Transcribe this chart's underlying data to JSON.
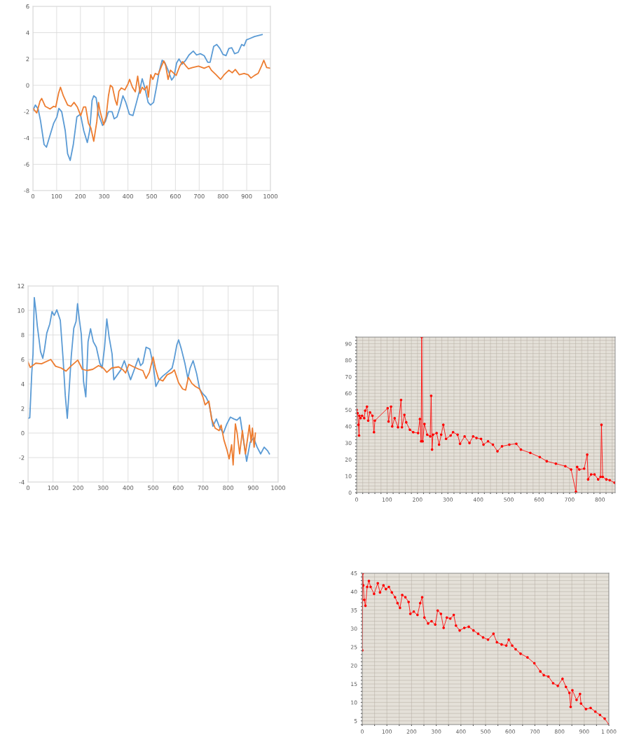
{
  "chart_data": [
    {
      "type": "line",
      "xlim": [
        0,
        1000
      ],
      "ylim": [
        -8,
        6
      ],
      "xticks": [
        0,
        100,
        200,
        300,
        400,
        500,
        600,
        700,
        800,
        900,
        1000
      ],
      "yticks": [
        -8,
        -6,
        -4,
        -2,
        0,
        2,
        4,
        6
      ],
      "grid": true,
      "marker": "none",
      "line_style": "solid",
      "series": [
        {
          "color": "#5b9bd5",
          "x": [
            0,
            10,
            22,
            32,
            47,
            57,
            72,
            87,
            101,
            109,
            121,
            136,
            146,
            157,
            170,
            185,
            200,
            214,
            229,
            239,
            249,
            256,
            266,
            276,
            293,
            305,
            318,
            333,
            342,
            354,
            367,
            379,
            391,
            406,
            421,
            436,
            451,
            460,
            472,
            485,
            495,
            508,
            520,
            531,
            544,
            556,
            569,
            584,
            594,
            605,
            615,
            628,
            643,
            657,
            675,
            689,
            705,
            721,
            736,
            746,
            761,
            774,
            787,
            800,
            813,
            825,
            837,
            849,
            864,
            879,
            889,
            899,
            913,
            933,
            965
          ],
          "values": [
            -1.94,
            -1.5,
            -1.8,
            -2.7,
            -4.5,
            -4.7,
            -3.8,
            -2.9,
            -2.4,
            -1.75,
            -2.0,
            -3.45,
            -5.2,
            -5.7,
            -4.5,
            -2.4,
            -2.2,
            -3.45,
            -4.35,
            -3.45,
            -1.15,
            -0.8,
            -0.95,
            -2.2,
            -3.05,
            -2.75,
            -2.0,
            -2.0,
            -2.55,
            -2.4,
            -1.65,
            -0.8,
            -1.3,
            -2.2,
            -2.3,
            -1.3,
            -0.25,
            0.5,
            -0.25,
            -1.3,
            -1.5,
            -1.3,
            -0.15,
            1.0,
            1.9,
            1.7,
            1.15,
            0.4,
            0.65,
            1.7,
            2.0,
            1.6,
            1.9,
            2.3,
            2.6,
            2.3,
            2.4,
            2.25,
            1.75,
            1.75,
            2.95,
            3.1,
            2.8,
            2.35,
            2.25,
            2.8,
            2.85,
            2.4,
            2.5,
            3.1,
            3.0,
            3.45,
            3.55,
            3.7,
            3.85
          ]
        },
        {
          "color": "#ed7d31",
          "x": [
            0,
            16,
            30,
            37,
            52,
            72,
            87,
            96,
            108,
            116,
            128,
            146,
            160,
            173,
            187,
            201,
            213,
            222,
            234,
            244,
            256,
            269,
            276,
            283,
            298,
            308,
            318,
            326,
            335,
            347,
            354,
            362,
            372,
            387,
            400,
            407,
            419,
            431,
            441,
            451,
            460,
            470,
            480,
            486,
            496,
            505,
            515,
            527,
            539,
            551,
            559,
            569,
            579,
            594,
            603,
            618,
            630,
            643,
            655,
            672,
            697,
            721,
            741,
            751,
            771,
            790,
            805,
            825,
            839,
            852,
            869,
            889,
            906,
            918,
            933,
            948,
            963,
            972,
            984,
            1000
          ],
          "values": [
            -1.75,
            -2.1,
            -1.2,
            -1.0,
            -1.6,
            -1.8,
            -1.6,
            -1.65,
            -0.6,
            -0.15,
            -0.8,
            -1.5,
            -1.6,
            -1.3,
            -1.65,
            -2.3,
            -1.65,
            -1.65,
            -2.9,
            -3.25,
            -4.25,
            -2.75,
            -1.3,
            -2.0,
            -3.0,
            -2.4,
            -0.8,
            0.0,
            -0.15,
            -1.15,
            -1.5,
            -0.45,
            -0.2,
            -0.35,
            0.1,
            0.45,
            -0.15,
            -0.5,
            0.7,
            -0.6,
            -0.15,
            -0.35,
            -0.05,
            -0.9,
            0.8,
            0.45,
            0.9,
            0.8,
            1.35,
            1.85,
            1.5,
            0.45,
            1.15,
            0.9,
            0.75,
            1.45,
            1.8,
            1.5,
            1.25,
            1.35,
            1.45,
            1.3,
            1.45,
            1.15,
            0.8,
            0.45,
            0.8,
            1.15,
            0.95,
            1.2,
            0.8,
            0.9,
            0.8,
            0.55,
            0.75,
            0.9,
            1.5,
            1.9,
            1.35,
            1.3
          ]
        }
      ]
    },
    {
      "type": "line",
      "xlim": [
        0,
        1000
      ],
      "ylim": [
        -4,
        12
      ],
      "xticks": [
        0,
        100,
        200,
        300,
        400,
        500,
        600,
        700,
        800,
        900,
        1000
      ],
      "yticks": [
        -4,
        -2,
        0,
        2,
        4,
        6,
        8,
        10,
        12
      ],
      "grid": true,
      "marker": "none",
      "line_style": "solid",
      "series": [
        {
          "color": "#5b9bd5",
          "x": [
            0,
            7,
            15,
            20,
            25,
            31,
            37,
            43,
            50,
            59,
            66,
            75,
            87,
            96,
            105,
            115,
            129,
            140,
            149,
            157,
            164,
            173,
            183,
            192,
            198,
            205,
            213,
            222,
            231,
            240,
            250,
            261,
            273,
            287,
            296,
            306,
            315,
            324,
            336,
            343,
            357,
            371,
            385,
            397,
            410,
            427,
            441,
            450,
            459,
            472,
            487,
            501,
            511,
            525,
            539,
            557,
            576,
            585,
            595,
            602,
            613,
            627,
            639,
            648,
            660,
            674,
            686,
            697,
            711,
            723,
            732,
            739,
            753,
            767,
            781,
            795,
            809,
            823,
            835,
            848,
            860,
            874,
            888,
            902,
            916,
            930,
            944,
            958,
            965
          ],
          "values": [
            1.2,
            1.25,
            4.9,
            6.45,
            11.05,
            10.05,
            8.75,
            7.8,
            6.65,
            6.1,
            6.85,
            8.15,
            8.9,
            9.9,
            9.6,
            10.05,
            9.2,
            6.1,
            3.05,
            1.2,
            3.4,
            6.3,
            8.55,
            9.1,
            10.55,
            9.3,
            8.05,
            4.2,
            2.95,
            7.45,
            8.5,
            7.45,
            7.0,
            5.7,
            5.3,
            7.0,
            9.3,
            7.85,
            6.45,
            4.35,
            4.75,
            5.15,
            5.9,
            5.15,
            4.35,
            5.3,
            6.1,
            5.5,
            5.7,
            7.0,
            6.85,
            5.5,
            3.8,
            4.35,
            4.65,
            4.95,
            5.3,
            6.1,
            7.2,
            7.6,
            6.85,
            5.7,
            4.45,
            5.3,
            5.9,
            4.85,
            3.6,
            3.25,
            2.95,
            2.45,
            1.5,
            0.55,
            1.15,
            0.4,
            0.0,
            0.75,
            1.3,
            1.15,
            1.05,
            1.3,
            -0.4,
            -2.3,
            -0.75,
            -0.4,
            -1.15,
            -1.7,
            -1.15,
            -1.45,
            -1.7
          ]
        },
        {
          "color": "#ed7d31",
          "x": [
            0,
            9,
            31,
            54,
            91,
            110,
            133,
            152,
            171,
            199,
            217,
            236,
            259,
            282,
            301,
            315,
            334,
            362,
            380,
            390,
            403,
            422,
            444,
            459,
            472,
            485,
            500,
            509,
            522,
            539,
            556,
            576,
            585,
            602,
            618,
            630,
            641,
            655,
            669,
            686,
            699,
            708,
            723,
            734,
            748,
            764,
            772,
            783,
            795,
            804,
            814,
            820,
            829,
            836,
            846,
            857,
            869,
            878,
            885,
            892,
            897,
            904,
            909
          ],
          "values": [
            5.8,
            5.35,
            5.7,
            5.65,
            6.0,
            5.45,
            5.3,
            5.05,
            5.45,
            5.95,
            5.2,
            5.1,
            5.2,
            5.5,
            5.3,
            4.95,
            5.3,
            5.4,
            5.15,
            4.9,
            5.6,
            5.4,
            5.2,
            5.1,
            4.45,
            4.95,
            6.2,
            5.3,
            4.4,
            4.25,
            4.75,
            4.95,
            5.15,
            4.1,
            3.6,
            3.5,
            4.55,
            4.05,
            3.8,
            3.6,
            2.95,
            2.3,
            2.6,
            1.15,
            0.4,
            0.2,
            0.65,
            -0.55,
            -1.35,
            -2.1,
            -0.95,
            -2.6,
            0.75,
            0.0,
            -1.7,
            0.2,
            -1.7,
            -0.4,
            0.65,
            -0.75,
            0.4,
            -1.15,
            0.0
          ]
        }
      ]
    },
    {
      "type": "line",
      "xlim": [
        0,
        850
      ],
      "ylim": [
        0,
        94
      ],
      "xticks": [
        0,
        {
          "value": 20,
          "label": null
        },
        {
          "value": 40,
          "label": null
        },
        {
          "value": 60,
          "label": null
        },
        {
          "value": 80,
          "label": null
        },
        100,
        {
          "value": 120,
          "label": null
        },
        {
          "value": 140,
          "label": null
        },
        {
          "value": 160,
          "label": null
        },
        {
          "value": 180,
          "label": null
        },
        200,
        {
          "value": 220,
          "label": null
        },
        {
          "value": 240,
          "label": null
        },
        {
          "value": 260,
          "label": null
        },
        {
          "value": 280,
          "label": null
        },
        300,
        {
          "value": 320,
          "label": null
        },
        {
          "value": 340,
          "label": null
        },
        {
          "value": 360,
          "label": null
        },
        {
          "value": 380,
          "label": null
        },
        400,
        {
          "value": 420,
          "label": null
        },
        {
          "value": 440,
          "label": null
        },
        {
          "value": 460,
          "label": null
        },
        {
          "value": 480,
          "label": null
        },
        500,
        {
          "value": 520,
          "label": null
        },
        {
          "value": 540,
          "label": null
        },
        {
          "value": 560,
          "label": null
        },
        {
          "value": 580,
          "label": null
        },
        600,
        {
          "value": 620,
          "label": null
        },
        {
          "value": 640,
          "label": null
        },
        {
          "value": 660,
          "label": null
        },
        {
          "value": 680,
          "label": null
        },
        700,
        {
          "value": 720,
          "label": null
        },
        {
          "value": 740,
          "label": null
        },
        {
          "value": 760,
          "label": null
        },
        {
          "value": 780,
          "label": null
        },
        800,
        {
          "value": 820,
          "label": null
        },
        {
          "value": 840,
          "label": null
        }
      ],
      "yticks": [
        0,
        {
          "value": 2,
          "label": null
        },
        {
          "value": 4,
          "label": null
        },
        {
          "value": 6,
          "label": null
        },
        {
          "value": 8,
          "label": null
        },
        10,
        {
          "value": 12,
          "label": null
        },
        {
          "value": 14,
          "label": null
        },
        {
          "value": 16,
          "label": null
        },
        {
          "value": 18,
          "label": null
        },
        20,
        {
          "value": 22,
          "label": null
        },
        {
          "value": 24,
          "label": null
        },
        {
          "value": 26,
          "label": null
        },
        {
          "value": 28,
          "label": null
        },
        30,
        {
          "value": 32,
          "label": null
        },
        {
          "value": 34,
          "label": null
        },
        {
          "value": 36,
          "label": null
        },
        {
          "value": 38,
          "label": null
        },
        40,
        {
          "value": 42,
          "label": null
        },
        {
          "value": 44,
          "label": null
        },
        {
          "value": 46,
          "label": null
        },
        {
          "value": 48,
          "label": null
        },
        50,
        {
          "value": 52,
          "label": null
        },
        {
          "value": 54,
          "label": null
        },
        {
          "value": 56,
          "label": null
        },
        {
          "value": 58,
          "label": null
        },
        60,
        {
          "value": 62,
          "label": null
        },
        {
          "value": 64,
          "label": null
        },
        {
          "value": 66,
          "label": null
        },
        {
          "value": 68,
          "label": null
        },
        70,
        {
          "value": 72,
          "label": null
        },
        {
          "value": 74,
          "label": null
        },
        {
          "value": 76,
          "label": null
        },
        {
          "value": 78,
          "label": null
        },
        80,
        {
          "value": 82,
          "label": null
        },
        {
          "value": 84,
          "label": null
        },
        {
          "value": 86,
          "label": null
        },
        {
          "value": 88,
          "label": null
        },
        90,
        {
          "value": 92,
          "label": null
        },
        {
          "value": 94,
          "label": null
        }
      ],
      "grid": true,
      "marker": "circle",
      "line_style": "solid",
      "series": [
        {
          "color": "#ff0000",
          "x": [
            0,
            3,
            6,
            8,
            9,
            13,
            18,
            25,
            28,
            34,
            38,
            44,
            52,
            57,
            60,
            102,
            105,
            113,
            117,
            125,
            136,
            146,
            149,
            157,
            163,
            175,
            186,
            202,
            208,
            212,
            214,
            217,
            223,
            232,
            242,
            245,
            248,
            251,
            263,
            271,
            278,
            285,
            294,
            309,
            317,
            332,
            340,
            355,
            371,
            383,
            394,
            409,
            417,
            432,
            448,
            463,
            478,
            502,
            525,
            540,
            571,
            602,
            625,
            655,
            686,
            705,
            721,
            725,
            732,
            748,
            758,
            761,
            771,
            782,
            794,
            802,
            805,
            809,
            821,
            832,
            848
          ],
          "values": [
            50,
            48,
            41,
            34.5,
            46.5,
            45,
            46.5,
            45,
            49.5,
            52,
            43.5,
            48.5,
            46.5,
            36.5,
            43.5,
            51,
            43,
            52,
            40,
            45,
            39.5,
            56,
            39.5,
            47,
            42.5,
            38,
            36.5,
            36,
            44.5,
            31,
            94,
            31,
            41.5,
            35,
            34,
            58.5,
            26,
            35,
            36,
            29,
            35,
            41,
            32.5,
            34.5,
            36.5,
            35,
            29.5,
            34,
            30,
            34,
            33,
            32.5,
            29,
            31,
            29,
            25,
            28,
            29,
            29.5,
            26,
            24,
            21.5,
            19,
            17.5,
            16,
            14,
            0.5,
            15.5,
            14,
            14.5,
            23,
            8,
            11,
            11,
            8,
            9.5,
            41,
            9.5,
            8,
            7.5,
            6
          ]
        }
      ]
    },
    {
      "type": "line",
      "xlim": [
        0,
        1000
      ],
      "ylim": [
        4,
        45
      ],
      "xticks": [
        0,
        {
          "value": 50,
          "label": null
        },
        100,
        {
          "value": 150,
          "label": null
        },
        200,
        {
          "value": 250,
          "label": null
        },
        300,
        {
          "value": 350,
          "label": null
        },
        400,
        {
          "value": 450,
          "label": null
        },
        500,
        {
          "value": 550,
          "label": null
        },
        600,
        {
          "value": 650,
          "label": null
        },
        700,
        {
          "value": 750,
          "label": null
        },
        800,
        {
          "value": 850,
          "label": null
        },
        900,
        {
          "value": 950,
          "label": null
        },
        {
          "value": 1000,
          "label": "1 000"
        }
      ],
      "yticks": [
        {
          "value": 4,
          "label": null
        },
        5,
        {
          "value": 6,
          "label": null
        },
        {
          "value": 7,
          "label": null
        },
        {
          "value": 8,
          "label": null
        },
        {
          "value": 9,
          "label": null
        },
        10,
        {
          "value": 11,
          "label": null
        },
        {
          "value": 12,
          "label": null
        },
        {
          "value": 13,
          "label": null
        },
        {
          "value": 14,
          "label": null
        },
        15,
        {
          "value": 16,
          "label": null
        },
        {
          "value": 17,
          "label": null
        },
        {
          "value": 18,
          "label": null
        },
        {
          "value": 19,
          "label": null
        },
        20,
        {
          "value": 21,
          "label": null
        },
        {
          "value": 22,
          "label": null
        },
        {
          "value": 23,
          "label": null
        },
        {
          "value": 24,
          "label": null
        },
        25,
        {
          "value": 26,
          "label": null
        },
        {
          "value": 27,
          "label": null
        },
        {
          "value": 28,
          "label": null
        },
        {
          "value": 29,
          "label": null
        },
        30,
        {
          "value": 31,
          "label": null
        },
        {
          "value": 32,
          "label": null
        },
        {
          "value": 33,
          "label": null
        },
        {
          "value": 34,
          "label": null
        },
        35,
        {
          "value": 36,
          "label": null
        },
        {
          "value": 37,
          "label": null
        },
        {
          "value": 38,
          "label": null
        },
        {
          "value": 39,
          "label": null
        },
        40,
        {
          "value": 41,
          "label": null
        },
        {
          "value": 42,
          "label": null
        },
        {
          "value": 43,
          "label": null
        },
        {
          "value": 44,
          "label": null
        },
        45
      ],
      "grid": true,
      "marker": "circle",
      "line_style": "solid",
      "series": [
        {
          "color": "#ff0000",
          "x": [
            0,
            2,
            4,
            8,
            13,
            20,
            27,
            34,
            48,
            63,
            72,
            86,
            96,
            108,
            120,
            133,
            143,
            153,
            162,
            175,
            188,
            195,
            209,
            224,
            235,
            243,
            252,
            267,
            281,
            296,
            306,
            319,
            330,
            343,
            357,
            371,
            380,
            395,
            414,
            432,
            451,
            470,
            490,
            510,
            532,
            546,
            565,
            584,
            594,
            608,
            622,
            642,
            670,
            698,
            722,
            736,
            755,
            774,
            793,
            812,
            826,
            840,
            845,
            852,
            869,
            883,
            887,
            907,
            926,
            945,
            964,
            983,
            1000
          ],
          "values": [
            24.1,
            45,
            41.7,
            37.8,
            36.2,
            41.3,
            42.9,
            41.3,
            39.4,
            42.3,
            39.8,
            41.7,
            40.7,
            41.3,
            39.8,
            38.5,
            36.9,
            35.6,
            39.1,
            38.5,
            37.2,
            34.0,
            34.6,
            33.7,
            36.9,
            38.5,
            33.0,
            31.4,
            32.0,
            31.1,
            34.9,
            34.0,
            30.2,
            33.0,
            32.7,
            33.7,
            30.8,
            29.5,
            30.2,
            30.5,
            29.5,
            28.6,
            27.6,
            27.0,
            28.6,
            26.3,
            25.7,
            25.4,
            27.0,
            25.4,
            24.4,
            23.2,
            22.2,
            20.6,
            18.4,
            17.4,
            17.0,
            15.2,
            14.5,
            16.4,
            14.2,
            12.6,
            8.8,
            13.3,
            10.7,
            12.3,
            9.7,
            8.2,
            8.5,
            7.5,
            6.6,
            5.6,
            4
          ]
        }
      ]
    }
  ]
}
